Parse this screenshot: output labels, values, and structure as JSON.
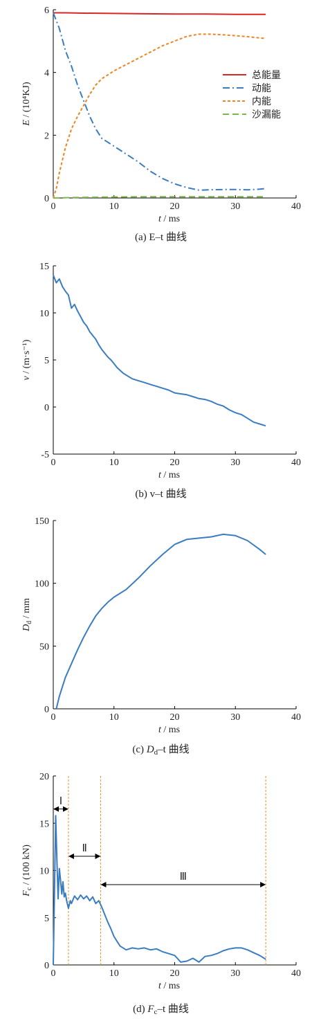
{
  "chart_data": [
    {
      "id": "a",
      "type": "line",
      "caption": "(a)  E–t 曲线",
      "ylabel": "E / (10⁴KJ)",
      "xlabel": "t / ms",
      "xlim": [
        0,
        40
      ],
      "ylim": [
        0,
        6
      ],
      "xticks": [
        0,
        10,
        20,
        30,
        40
      ],
      "yticks": [
        0,
        2,
        4,
        6
      ],
      "legend_position": "right",
      "series": [
        {
          "name": "总能量",
          "color": "#d62728",
          "dash": "none",
          "x": [
            0,
            2,
            5,
            10,
            15,
            20,
            25,
            30,
            35
          ],
          "y": [
            5.9,
            5.9,
            5.89,
            5.88,
            5.87,
            5.86,
            5.86,
            5.85,
            5.85
          ]
        },
        {
          "name": "动能",
          "color": "#3a7cc1",
          "dash": "dashdot",
          "x": [
            0,
            1,
            2,
            3,
            4,
            5,
            6,
            7,
            8,
            10,
            12,
            14,
            16,
            18,
            20,
            22,
            24,
            26,
            28,
            30,
            32,
            34,
            35
          ],
          "y": [
            5.9,
            5.4,
            4.7,
            4.2,
            3.6,
            3.1,
            2.6,
            2.2,
            1.9,
            1.65,
            1.4,
            1.15,
            0.85,
            0.62,
            0.45,
            0.33,
            0.25,
            0.26,
            0.27,
            0.27,
            0.26,
            0.28,
            0.3
          ]
        },
        {
          "name": "内能",
          "color": "#f0831e",
          "dash": "dash",
          "x": [
            0,
            0.5,
            1,
            2,
            3,
            4,
            5,
            6,
            7,
            8,
            10,
            12,
            14,
            16,
            18,
            20,
            22,
            24,
            26,
            28,
            30,
            32,
            35
          ],
          "y": [
            0,
            0.3,
            0.8,
            1.6,
            2.2,
            2.6,
            2.95,
            3.3,
            3.6,
            3.8,
            4.05,
            4.25,
            4.45,
            4.65,
            4.85,
            5.0,
            5.15,
            5.22,
            5.22,
            5.2,
            5.17,
            5.14,
            5.08
          ]
        },
        {
          "name": "沙漏能",
          "color": "#7ab648",
          "dash": "longdash",
          "x": [
            0,
            5,
            10,
            15,
            20,
            25,
            30,
            35
          ],
          "y": [
            0,
            0.02,
            0.03,
            0.04,
            0.04,
            0.04,
            0.04,
            0.04
          ]
        }
      ]
    },
    {
      "id": "b",
      "type": "line",
      "caption": "(b)  v–t 曲线",
      "ylabel": "v / (m·s⁻¹)",
      "xlabel": "t / ms",
      "xlim": [
        0,
        40
      ],
      "ylim": [
        -5,
        15
      ],
      "xticks": [
        0,
        10,
        20,
        30,
        40
      ],
      "yticks": [
        -5,
        0,
        5,
        10,
        15
      ],
      "series": [
        {
          "color": "#3a7cc1",
          "x": [
            0,
            0.5,
            1,
            1.5,
            2,
            2.5,
            3,
            3.5,
            4,
            4.5,
            5,
            5.5,
            6,
            6.5,
            7,
            7.5,
            8,
            8.5,
            9,
            9.5,
            10,
            10.5,
            11,
            11.5,
            12,
            13,
            14,
            15,
            16,
            17,
            18,
            19,
            20,
            21,
            22,
            23,
            24,
            25,
            26,
            27,
            28,
            29,
            30,
            31,
            32,
            33,
            34,
            35
          ],
          "y": [
            14,
            13.2,
            13.6,
            12.8,
            12.3,
            11.9,
            10.5,
            10.9,
            10.2,
            9.6,
            9.0,
            8.6,
            8.0,
            7.6,
            7.2,
            6.6,
            6.1,
            5.7,
            5.3,
            5.0,
            4.6,
            4.2,
            3.9,
            3.6,
            3.4,
            3.0,
            2.8,
            2.6,
            2.4,
            2.2,
            2.0,
            1.8,
            1.5,
            1.4,
            1.3,
            1.1,
            0.9,
            0.8,
            0.6,
            0.3,
            0.1,
            -0.3,
            -0.6,
            -0.8,
            -1.2,
            -1.6,
            -1.8,
            -2.0
          ]
        }
      ]
    },
    {
      "id": "c",
      "type": "line",
      "caption": "(c)  D_d–t 曲线",
      "ylabel": "D_d / mm",
      "xlabel": "t / ms",
      "xlim": [
        0,
        40
      ],
      "ylim": [
        0,
        150
      ],
      "xticks": [
        0,
        10,
        20,
        30,
        40
      ],
      "yticks": [
        0,
        50,
        100,
        150
      ],
      "series": [
        {
          "color": "#3a7cc1",
          "x": [
            0.5,
            1,
            2,
            3,
            4,
            5,
            6,
            7,
            8,
            9,
            10,
            12,
            14,
            16,
            18,
            20,
            22,
            24,
            26,
            28,
            30,
            32,
            34,
            35
          ],
          "y": [
            0,
            10,
            25,
            36,
            47,
            57,
            66,
            74,
            80,
            85,
            89,
            95,
            104,
            114,
            123,
            131,
            135,
            136,
            137,
            139,
            138,
            134,
            127,
            123
          ]
        }
      ]
    },
    {
      "id": "d",
      "type": "line",
      "caption": "(d)  F_c–t 曲线",
      "ylabel": "F_c / (100 kN)",
      "xlabel": "t / ms",
      "xlim": [
        0,
        40
      ],
      "ylim": [
        0,
        20
      ],
      "xticks": [
        0,
        10,
        20,
        30,
        40
      ],
      "yticks": [
        0,
        5,
        10,
        15,
        20
      ],
      "regions": [
        {
          "label": "Ⅰ",
          "from": 0,
          "to": 2.5,
          "y": 16.5
        },
        {
          "label": "Ⅱ",
          "from": 2.5,
          "to": 7.8,
          "y": 11.5
        },
        {
          "label": "Ⅲ",
          "from": 7.8,
          "to": 35,
          "y": 8.5
        }
      ],
      "boundaries": [
        2.5,
        7.8,
        35
      ],
      "series": [
        {
          "color": "#3a7cc1",
          "x": [
            0,
            0.2,
            0.4,
            0.6,
            0.8,
            1.0,
            1.2,
            1.4,
            1.6,
            1.8,
            2.0,
            2.2,
            2.5,
            2.8,
            3.0,
            3.5,
            4,
            4.5,
            5,
            5.5,
            6,
            6.5,
            7,
            7.5,
            8,
            8.5,
            9,
            9.5,
            10,
            11,
            12,
            13,
            14,
            15,
            16,
            17,
            18,
            19,
            20,
            21,
            22,
            23,
            24,
            25,
            26,
            27,
            28,
            29,
            30,
            31,
            32,
            33,
            34,
            35
          ],
          "y": [
            0,
            8,
            15.8,
            11,
            7,
            10.2,
            9,
            7.5,
            8.8,
            7.2,
            7.6,
            6.8,
            6.0,
            6.8,
            6.5,
            7.3,
            6.9,
            7.4,
            7.0,
            7.3,
            6.8,
            7.2,
            6.5,
            6.8,
            6.1,
            5.3,
            4.5,
            3.8,
            3.0,
            2.0,
            1.6,
            1.8,
            1.7,
            1.8,
            1.6,
            1.7,
            1.4,
            1.2,
            1.0,
            0.3,
            0.4,
            0.7,
            0.3,
            0.9,
            1.0,
            1.2,
            1.5,
            1.7,
            1.8,
            1.8,
            1.6,
            1.3,
            1.0,
            0.6
          ]
        }
      ]
    }
  ]
}
